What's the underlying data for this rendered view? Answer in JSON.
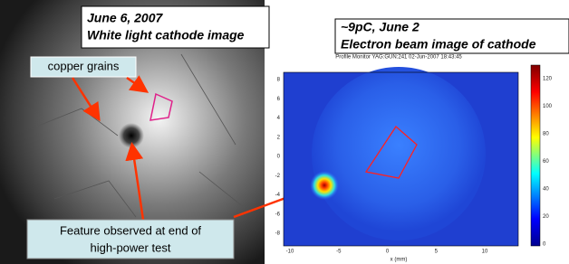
{
  "left_photo": {
    "caption_lines": [
      "June 6, 2007",
      "White light cathode image"
    ],
    "label": "copper grains",
    "callout_lines": [
      "Feature observed at end of",
      "high-power test"
    ]
  },
  "right_image": {
    "caption_lines": [
      "~9pC, June 2",
      "Electron beam image of cathode"
    ],
    "plot_title": "Profile Monitor YAG:GUN:241 02-Jun-2007 18:43:45",
    "y_ticks": [
      "8",
      "6",
      "4",
      "2",
      "0",
      "-2",
      "-4",
      "-6",
      "-8"
    ],
    "x_ticks": [
      "-10",
      "-5",
      "0",
      "5",
      "10"
    ],
    "x_label": "x (mm)",
    "colorbar_ticks": [
      "120",
      "100",
      "80",
      "60",
      "40",
      "20",
      "0"
    ]
  }
}
